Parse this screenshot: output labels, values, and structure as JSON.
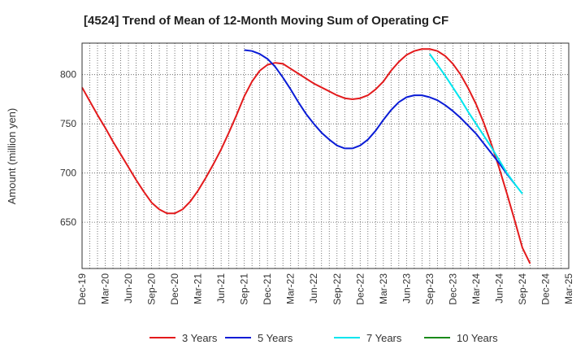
{
  "chart_data": {
    "type": "line",
    "title": "[4524]  Trend of Mean of 12-Month Moving Sum of Operating CF",
    "xlabel": "",
    "ylabel": "Amount (million yen)",
    "x_tick_labels": [
      "Dec-19",
      "Mar-20",
      "Jun-20",
      "Sep-20",
      "Dec-20",
      "Mar-21",
      "Jun-21",
      "Sep-21",
      "Dec-21",
      "Mar-22",
      "Jun-22",
      "Sep-22",
      "Dec-22",
      "Mar-23",
      "Jun-23",
      "Sep-23",
      "Dec-23",
      "Mar-24",
      "Jun-24",
      "Sep-24",
      "Dec-24",
      "Mar-25"
    ],
    "y_ticks": [
      650,
      700,
      750,
      800
    ],
    "ylim": [
      603,
      832
    ],
    "x_index_range": [
      0,
      63
    ],
    "grid": true,
    "legend_position": "bottom",
    "series": [
      {
        "name": "3 Years",
        "color": "#e31a1c",
        "start_index": 0,
        "values": [
          787,
          773,
          759,
          746,
          732,
          719,
          706,
          693,
          681,
          670,
          663,
          659,
          659,
          663,
          671,
          682,
          695,
          709,
          724,
          741,
          759,
          778,
          793,
          804,
          810,
          812,
          811,
          806,
          801,
          796,
          791,
          787,
          783,
          779,
          776,
          775,
          776,
          779,
          785,
          793,
          804,
          813,
          820,
          824,
          826,
          826,
          824,
          819,
          811,
          800,
          786,
          770,
          751,
          729,
          705,
          679,
          652,
          624,
          608
        ]
      },
      {
        "name": "5 Years",
        "color": "#0a1cd6",
        "start_index": 21,
        "values": [
          825,
          824,
          821,
          816,
          808,
          797,
          785,
          772,
          760,
          750,
          741,
          734,
          728,
          725,
          725,
          728,
          734,
          743,
          754,
          764,
          772,
          777,
          779,
          779,
          777,
          774,
          769,
          763,
          756,
          748,
          740,
          730,
          720,
          710,
          699,
          689
        ]
      },
      {
        "name": "7 Years",
        "color": "#00e5ee",
        "start_index": 45,
        "values": [
          821,
          810,
          799,
          787,
          775,
          762,
          750,
          738,
          726,
          713,
          700,
          689,
          679
        ]
      },
      {
        "name": "10 Years",
        "color": "#1a8a1a",
        "start_index": 0,
        "values": []
      }
    ]
  }
}
